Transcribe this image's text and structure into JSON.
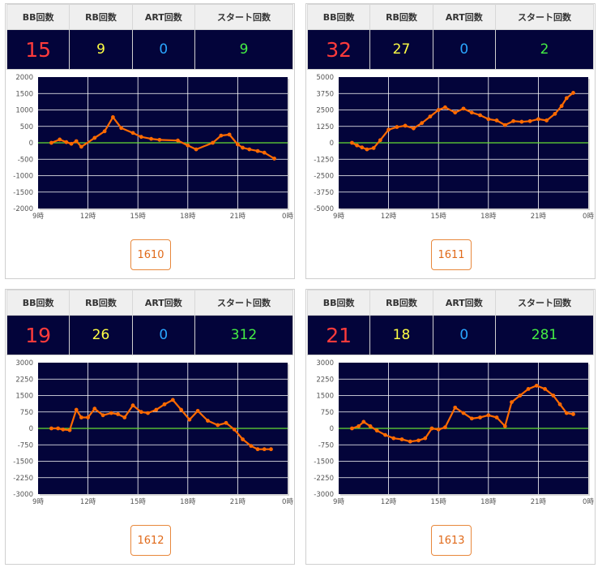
{
  "headers": {
    "bb": "BB回数",
    "rb": "RB回数",
    "art": "ART回数",
    "start": "スタート回数"
  },
  "colors": {
    "bb": "#ff3b3b",
    "rb": "#ffff44",
    "art": "#2aa6ff",
    "start": "#44ee44",
    "line": "#ff6a00",
    "plot_bg": "#03043a",
    "zero_line": "#66dd33",
    "grid": "#ffffff"
  },
  "machines": [
    {
      "id": "1610",
      "bb": "15",
      "rb": "9",
      "art": "0",
      "start": "9"
    },
    {
      "id": "1611",
      "bb": "32",
      "rb": "27",
      "art": "0",
      "start": "2"
    },
    {
      "id": "1612",
      "bb": "19",
      "rb": "26",
      "art": "0",
      "start": "312"
    },
    {
      "id": "1613",
      "bb": "21",
      "rb": "18",
      "art": "0",
      "start": "281"
    }
  ],
  "chart_data": [
    {
      "type": "line",
      "machine": "1610",
      "x_ticks": [
        "9時",
        "12時",
        "15時",
        "18時",
        "21時",
        "0時"
      ],
      "x_range": [
        9,
        24
      ],
      "y_ticks": [
        2000,
        1500,
        1000,
        500,
        0,
        -500,
        -1000,
        -1500,
        -2000
      ],
      "ylim": [
        -2000,
        2000
      ],
      "x": [
        9.8,
        10.3,
        10.7,
        11.0,
        11.3,
        11.6,
        12.4,
        13.0,
        13.5,
        14.0,
        14.7,
        15.2,
        15.8,
        16.3,
        17.4,
        18.0,
        18.5,
        19.5,
        20.0,
        20.5,
        21.0,
        21.3,
        21.7,
        22.2,
        22.6,
        23.2
      ],
      "y": [
        0,
        100,
        20,
        -30,
        50,
        -120,
        150,
        350,
        780,
        450,
        300,
        180,
        120,
        90,
        70,
        -80,
        -200,
        0,
        220,
        250,
        -50,
        -150,
        -200,
        -250,
        -300,
        -480
      ]
    },
    {
      "type": "line",
      "machine": "1611",
      "x_ticks": [
        "9時",
        "12時",
        "15時",
        "18時",
        "21時",
        "0時"
      ],
      "x_range": [
        9,
        24
      ],
      "y_ticks": [
        5000,
        3750,
        2500,
        1250,
        0,
        -1250,
        -2500,
        -3750,
        -5000
      ],
      "ylim": [
        -5000,
        5000
      ],
      "x": [
        9.8,
        10.1,
        10.4,
        10.7,
        11.1,
        11.5,
        12.0,
        12.5,
        13.0,
        13.5,
        14.0,
        14.5,
        15.0,
        15.4,
        16.0,
        16.5,
        17.0,
        17.5,
        18.0,
        18.5,
        19.0,
        19.5,
        20.0,
        20.5,
        21.0,
        21.5,
        22.0,
        22.4,
        22.7,
        23.1
      ],
      "y": [
        0,
        -200,
        -350,
        -500,
        -400,
        200,
        1000,
        1200,
        1300,
        1100,
        1500,
        2000,
        2500,
        2700,
        2300,
        2600,
        2300,
        2100,
        1800,
        1700,
        1350,
        1650,
        1600,
        1650,
        1800,
        1700,
        2200,
        2800,
        3400,
        3800
      ]
    },
    {
      "type": "line",
      "machine": "1612",
      "x_ticks": [
        "9時",
        "12時",
        "15時",
        "18時",
        "21時",
        "0時"
      ],
      "x_range": [
        9,
        24
      ],
      "y_ticks": [
        3000,
        2250,
        1500,
        750,
        0,
        -750,
        -1500,
        -2250,
        -3000
      ],
      "ylim": [
        -3000,
        3000
      ],
      "x": [
        9.8,
        10.2,
        10.5,
        10.9,
        11.3,
        11.6,
        12.0,
        12.4,
        12.9,
        13.4,
        13.8,
        14.2,
        14.7,
        15.2,
        15.6,
        16.1,
        16.6,
        17.1,
        17.6,
        18.1,
        18.6,
        19.2,
        19.8,
        20.3,
        20.8,
        21.3,
        21.8,
        22.2,
        22.6,
        23.0
      ],
      "y": [
        0,
        0,
        -50,
        -80,
        850,
        500,
        500,
        900,
        600,
        700,
        650,
        500,
        1050,
        750,
        700,
        850,
        1100,
        1300,
        850,
        400,
        800,
        350,
        150,
        250,
        -50,
        -500,
        -800,
        -950,
        -950,
        -950
      ]
    },
    {
      "type": "line",
      "machine": "1613",
      "x_ticks": [
        "9時",
        "12時",
        "15時",
        "18時",
        "21時",
        "0時"
      ],
      "x_range": [
        9,
        24
      ],
      "y_ticks": [
        3000,
        2250,
        1500,
        750,
        0,
        -750,
        -1500,
        -2250,
        -3000
      ],
      "ylim": [
        -3000,
        3000
      ],
      "x": [
        9.8,
        10.2,
        10.5,
        10.9,
        11.3,
        11.8,
        12.3,
        12.8,
        13.3,
        13.8,
        14.2,
        14.6,
        15.0,
        15.4,
        16.0,
        16.5,
        17.0,
        17.5,
        18.0,
        18.5,
        19.0,
        19.4,
        19.9,
        20.4,
        20.9,
        21.4,
        21.9,
        22.3,
        22.7,
        23.1
      ],
      "y": [
        0,
        100,
        300,
        100,
        -100,
        -300,
        -450,
        -500,
        -600,
        -550,
        -450,
        0,
        -50,
        50,
        950,
        700,
        450,
        500,
        600,
        500,
        100,
        1200,
        1500,
        1800,
        1950,
        1800,
        1500,
        1100,
        700,
        650
      ]
    }
  ]
}
